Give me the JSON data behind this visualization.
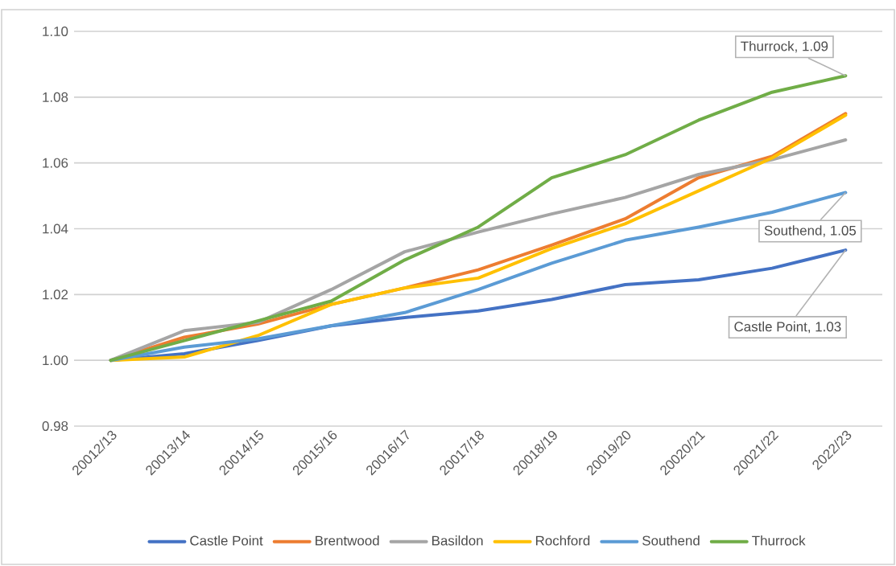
{
  "chart_data": {
    "type": "line",
    "categories": [
      "20012/13",
      "20013/14",
      "20014/15",
      "20015/16",
      "20016/17",
      "20017/18",
      "20018/19",
      "20019/20",
      "20020/21",
      "20021/22",
      "2022/23"
    ],
    "series": [
      {
        "name": "Castle Point",
        "color": "#4472c4",
        "values": [
          1.0,
          1.002,
          1.006,
          1.0105,
          1.013,
          1.015,
          1.0185,
          1.023,
          1.0245,
          1.028,
          1.0335
        ]
      },
      {
        "name": "Brentwood",
        "color": "#ed7d31",
        "values": [
          1.0,
          1.007,
          1.011,
          1.017,
          1.022,
          1.0275,
          1.035,
          1.043,
          1.0555,
          1.062,
          1.075
        ]
      },
      {
        "name": "Basildon",
        "color": "#a5a5a5",
        "values": [
          1.0,
          1.009,
          1.0115,
          1.0215,
          1.033,
          1.039,
          1.0445,
          1.0495,
          1.0565,
          1.061,
          1.067
        ]
      },
      {
        "name": "Rochford",
        "color": "#ffc000",
        "values": [
          1.0,
          1.001,
          1.0075,
          1.017,
          1.022,
          1.025,
          1.034,
          1.0415,
          1.0515,
          1.0615,
          1.0745
        ]
      },
      {
        "name": "Southend",
        "color": "#5b9bd5",
        "values": [
          1.0,
          1.004,
          1.0065,
          1.0105,
          1.0145,
          1.0215,
          1.0295,
          1.0365,
          1.0405,
          1.045,
          1.051
        ]
      },
      {
        "name": "Thurrock",
        "color": "#70ad47",
        "values": [
          1.0,
          1.006,
          1.012,
          1.018,
          1.0305,
          1.0405,
          1.0555,
          1.0625,
          1.073,
          1.0815,
          1.0865
        ]
      }
    ],
    "annotations": [
      {
        "text": "Thurrock, 1.09",
        "x": "2022/23",
        "y": 1.0865
      },
      {
        "text": "Southend, 1.05",
        "x": "2022/23",
        "y": 1.051
      },
      {
        "text": "Castle Point, 1.03",
        "x": "2022/23",
        "y": 1.0335
      }
    ],
    "ylim": [
      0.98,
      1.1
    ],
    "yticks": [
      {
        "value": 0.98,
        "label": "0.98"
      },
      {
        "value": 1.0,
        "label": "1.00"
      },
      {
        "value": 1.02,
        "label": "1.02"
      },
      {
        "value": 1.04,
        "label": "1.04"
      },
      {
        "value": 1.06,
        "label": "1.06"
      },
      {
        "value": 1.08,
        "label": "1.08"
      },
      {
        "value": 1.1,
        "label": "1.10"
      }
    ],
    "grid": "y",
    "legend": "bottom",
    "marker": "none",
    "line_style": "solid"
  }
}
